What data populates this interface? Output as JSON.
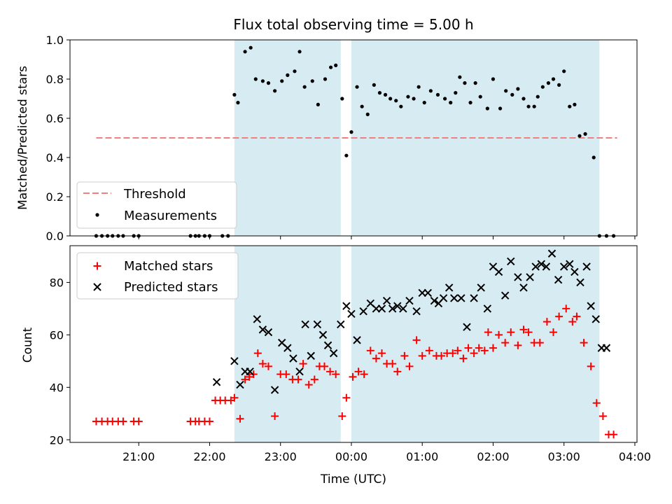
{
  "chart_data": [
    {
      "type": "scatter",
      "panel": "top",
      "title": "Flux total observing time = 5.00 h",
      "ylabel": "Matched/Predicted stars",
      "ylim": [
        0.0,
        1.0
      ],
      "yticks": [
        "0.0",
        "0.2",
        "0.4",
        "0.6",
        "0.8",
        "1.0"
      ],
      "threshold": {
        "name": "Threshold",
        "value": 0.5,
        "x_range": [
          20.4,
          27.75
        ],
        "color": "#f08080"
      },
      "legend": {
        "placement": "lower-left",
        "entries": [
          "Threshold",
          "Measurements"
        ]
      },
      "shaded_spans": [
        [
          22.35,
          23.85
        ],
        [
          24.0,
          27.5
        ]
      ],
      "shade_color": "#add8e6",
      "series": [
        {
          "name": "Measurements",
          "marker": "dot",
          "color": "#000000",
          "x": [
            20.4,
            20.48,
            20.56,
            20.63,
            20.71,
            20.78,
            20.93,
            21.0,
            21.73,
            21.8,
            21.85,
            21.93,
            22.0,
            22.18,
            22.26,
            22.35,
            22.4,
            22.5,
            22.58,
            22.65,
            22.75,
            22.83,
            22.92,
            23.02,
            23.1,
            23.2,
            23.27,
            23.34,
            23.45,
            23.53,
            23.63,
            23.71,
            23.78,
            23.87,
            23.93,
            24.0,
            24.08,
            24.15,
            24.23,
            24.32,
            24.4,
            24.48,
            24.55,
            24.63,
            24.7,
            24.8,
            24.88,
            24.95,
            25.03,
            25.12,
            25.22,
            25.32,
            25.4,
            25.47,
            25.53,
            25.6,
            25.68,
            25.75,
            25.82,
            25.92,
            26.0,
            26.1,
            26.18,
            26.27,
            26.35,
            26.43,
            26.5,
            26.58,
            26.63,
            26.7,
            26.78,
            26.85,
            26.93,
            27.0,
            27.08,
            27.15,
            27.22,
            27.3,
            27.42,
            27.5,
            27.6,
            27.7
          ],
          "y": [
            0,
            0,
            0,
            0,
            0,
            0,
            0,
            0,
            0,
            0,
            0,
            0,
            0,
            0,
            0,
            0.72,
            0.68,
            0.94,
            0.96,
            0.8,
            0.79,
            0.78,
            0.74,
            0.79,
            0.82,
            0.84,
            0.94,
            0.76,
            0.79,
            0.67,
            0.8,
            0.86,
            0.87,
            0.7,
            0.41,
            0.53,
            0.76,
            0.66,
            0.62,
            0.77,
            0.73,
            0.72,
            0.7,
            0.69,
            0.66,
            0.71,
            0.7,
            0.76,
            0.68,
            0.74,
            0.72,
            0.7,
            0.68,
            0.73,
            0.81,
            0.78,
            0.68,
            0.78,
            0.71,
            0.65,
            0.8,
            0.65,
            0.74,
            0.72,
            0.75,
            0.7,
            0.66,
            0.66,
            0.71,
            0.76,
            0.78,
            0.8,
            0.77,
            0.84,
            0.66,
            0.67,
            0.51,
            0.52,
            0.4,
            0.0,
            0.0,
            0.0
          ]
        }
      ]
    },
    {
      "type": "scatter",
      "panel": "bottom",
      "xlabel": "Time (UTC)",
      "ylabel": "Count",
      "ylim": [
        19,
        94
      ],
      "yticks": [
        "20",
        "40",
        "60",
        "80"
      ],
      "xlim": [
        20.03,
        28.03
      ],
      "xticks": [
        {
          "value": 21,
          "label": "21:00"
        },
        {
          "value": 22,
          "label": "22:00"
        },
        {
          "value": 23,
          "label": "23:00"
        },
        {
          "value": 24,
          "label": "00:00"
        },
        {
          "value": 25,
          "label": "01:00"
        },
        {
          "value": 26,
          "label": "02:00"
        },
        {
          "value": 27,
          "label": "03:00"
        },
        {
          "value": 28,
          "label": "04:00"
        }
      ],
      "legend": {
        "placement": "top-left",
        "entries": [
          "Matched stars",
          "Predicted stars"
        ]
      },
      "shaded_spans": [
        [
          22.35,
          23.85
        ],
        [
          24.0,
          27.5
        ]
      ],
      "shade_color": "#add8e6",
      "series": [
        {
          "name": "Matched stars",
          "marker": "plus",
          "color": "#ff0000",
          "x": [
            20.4,
            20.48,
            20.56,
            20.63,
            20.71,
            20.78,
            20.93,
            21.0,
            21.73,
            21.8,
            21.85,
            21.93,
            22.0,
            22.08,
            22.15,
            22.22,
            22.3,
            22.35,
            22.43,
            22.5,
            22.56,
            22.62,
            22.68,
            22.75,
            22.83,
            22.92,
            23.0,
            23.08,
            23.17,
            23.25,
            23.32,
            23.4,
            23.48,
            23.55,
            23.62,
            23.7,
            23.78,
            23.87,
            23.93,
            24.02,
            24.1,
            24.18,
            24.27,
            24.35,
            24.43,
            24.5,
            24.58,
            24.65,
            24.75,
            24.82,
            24.92,
            25.0,
            25.1,
            25.2,
            25.27,
            25.35,
            25.43,
            25.5,
            25.58,
            25.65,
            25.73,
            25.8,
            25.88,
            25.93,
            26.0,
            26.08,
            26.17,
            26.25,
            26.35,
            26.43,
            26.5,
            26.58,
            26.66,
            26.76,
            26.85,
            26.93,
            27.03,
            27.12,
            27.18,
            27.28,
            27.38,
            27.46,
            27.55,
            27.63,
            27.7
          ],
          "y": [
            27,
            27,
            27,
            27,
            27,
            27,
            27,
            27,
            27,
            27,
            27,
            27,
            27,
            35,
            35,
            35,
            35,
            36,
            28,
            43,
            44,
            45,
            53,
            49,
            48,
            29,
            45,
            45,
            43,
            43,
            49,
            41,
            43,
            48,
            48,
            46,
            45,
            29,
            36,
            44,
            46,
            45,
            54,
            51,
            53,
            49,
            49,
            46,
            52,
            48,
            58,
            52,
            54,
            52,
            52,
            53,
            53,
            54,
            51,
            55,
            53,
            55,
            54,
            61,
            55,
            60,
            57,
            61,
            56,
            62,
            61,
            57,
            57,
            65,
            61,
            67,
            70,
            65,
            67,
            57,
            48,
            34,
            29,
            22,
            22
          ]
        },
        {
          "name": "Predicted stars",
          "marker": "x",
          "color": "#000000",
          "x": [
            22.1,
            22.35,
            22.43,
            22.5,
            22.57,
            22.67,
            22.75,
            22.83,
            22.92,
            23.02,
            23.1,
            23.18,
            23.27,
            23.35,
            23.43,
            23.52,
            23.6,
            23.67,
            23.75,
            23.85,
            23.93,
            24.0,
            24.08,
            24.17,
            24.27,
            24.35,
            24.43,
            24.5,
            24.58,
            24.65,
            24.73,
            24.82,
            24.92,
            25.0,
            25.08,
            25.17,
            25.23,
            25.3,
            25.38,
            25.45,
            25.55,
            25.63,
            25.73,
            25.83,
            25.92,
            26.0,
            26.08,
            26.17,
            26.25,
            26.35,
            26.43,
            26.52,
            26.6,
            26.68,
            26.75,
            26.83,
            26.92,
            27.0,
            27.08,
            27.15,
            27.23,
            27.32,
            27.38,
            27.45,
            27.53,
            27.6
          ],
          "y": [
            42,
            50,
            41,
            46,
            46,
            66,
            62,
            61,
            39,
            57,
            55,
            51,
            46,
            64,
            52,
            64,
            60,
            56,
            53,
            64,
            71,
            68,
            58,
            69,
            72,
            70,
            70,
            73,
            70,
            71,
            70,
            73,
            69,
            76,
            76,
            73,
            72,
            74,
            78,
            74,
            74,
            63,
            74,
            78,
            70,
            86,
            84,
            75,
            88,
            82,
            78,
            82,
            86,
            87,
            86,
            91,
            81,
            86,
            87,
            84,
            80,
            86,
            71,
            66,
            55,
            55
          ]
        }
      ]
    }
  ]
}
